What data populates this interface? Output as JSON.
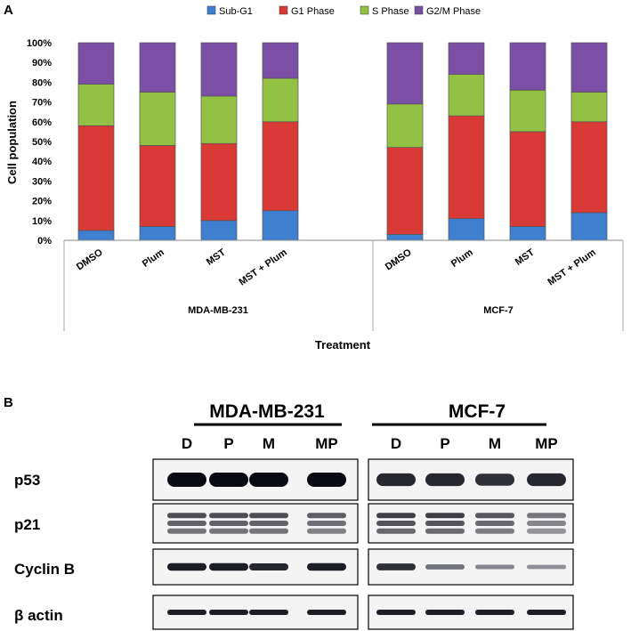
{
  "panels": {
    "a": "A",
    "b": "B"
  },
  "chart_data": {
    "type": "bar",
    "stacked": true,
    "categories": [
      "DMSO",
      "Plum",
      "MST",
      "MST + Plum",
      "DMSO",
      "Plum",
      "MST",
      "MST + Plum"
    ],
    "groups": [
      {
        "name": "MDA-MB-231",
        "categories": [
          0,
          1,
          2,
          3
        ]
      },
      {
        "name": "MCF-7",
        "categories": [
          4,
          5,
          6,
          7
        ]
      }
    ],
    "series": [
      {
        "name": "Sub-G1",
        "color": "#3f7fd0",
        "values": [
          5,
          7,
          10,
          15,
          3,
          11,
          7,
          14
        ]
      },
      {
        "name": "G1 Phase",
        "color": "#d93a36",
        "values": [
          53,
          41,
          39,
          45,
          44,
          52,
          48,
          46
        ]
      },
      {
        "name": "S  Phase",
        "color": "#92c144",
        "values": [
          21,
          27,
          24,
          22,
          22,
          21,
          21,
          15
        ]
      },
      {
        "name": "G2/M Phase",
        "color": "#7b4fa6",
        "values": [
          21,
          25,
          27,
          18,
          31,
          16,
          24,
          25
        ]
      }
    ],
    "ylabel": "Cell population",
    "xlabel": "Treatment",
    "ylim": [
      0,
      100
    ],
    "yticks": [
      "0%",
      "10%",
      "20%",
      "30%",
      "40%",
      "50%",
      "60%",
      "70%",
      "80%",
      "90%",
      "100%"
    ],
    "legend_position": "top",
    "grid": false
  },
  "western_blot": {
    "cell_lines": [
      "MDA-MB-231",
      "MCF-7"
    ],
    "lanes": [
      "D",
      "P",
      "M",
      "MP"
    ],
    "rows": [
      "p53",
      "p21",
      "Cyclin B",
      "β actin"
    ],
    "band_intensity": {
      "p53": [
        [
          1.0,
          1.0,
          1.0,
          1.0
        ],
        [
          0.85,
          0.85,
          0.8,
          0.85
        ]
      ],
      "p21": [
        [
          0.8,
          0.8,
          0.8,
          0.7
        ],
        [
          0.9,
          0.9,
          0.75,
          0.55
        ]
      ],
      "Cyclin B": [
        [
          0.9,
          0.9,
          0.85,
          0.9
        ],
        [
          0.8,
          0.45,
          0.35,
          0.3
        ]
      ],
      "β actin": [
        [
          0.9,
          0.9,
          0.9,
          0.9
        ],
        [
          0.9,
          0.9,
          0.9,
          0.9
        ]
      ]
    }
  }
}
